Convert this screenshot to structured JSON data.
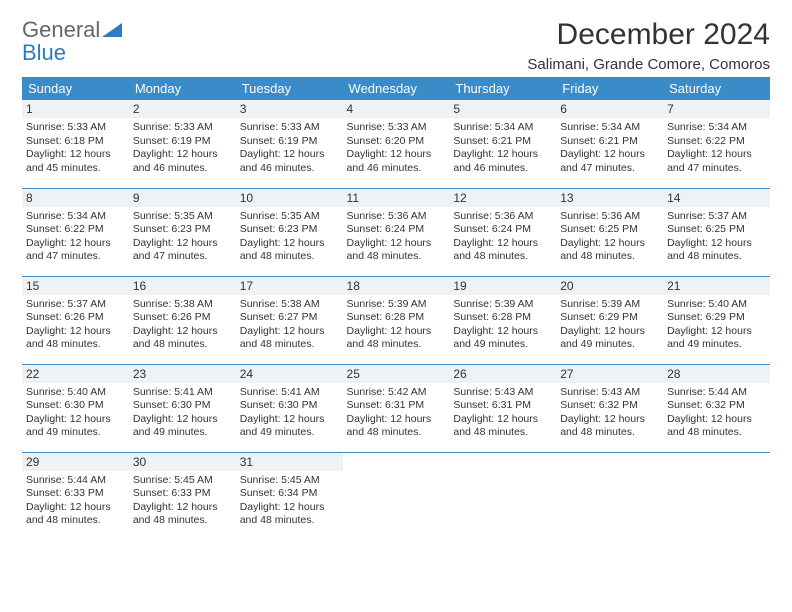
{
  "logo": {
    "line1": "General",
    "line2": "Blue"
  },
  "title": "December 2024",
  "location": "Salimani, Grande Comore, Comoros",
  "colors": {
    "header_bg": "#3b8bc9",
    "header_text": "#ffffff",
    "daynum_bg": "#eef2f5",
    "border": "#3b8bc9",
    "logo_gray": "#666666",
    "logo_blue": "#2f7bbf"
  },
  "weekdays": [
    "Sunday",
    "Monday",
    "Tuesday",
    "Wednesday",
    "Thursday",
    "Friday",
    "Saturday"
  ],
  "days": [
    {
      "n": "1",
      "sr": "5:33 AM",
      "ss": "6:18 PM",
      "dl": "12 hours and 45 minutes."
    },
    {
      "n": "2",
      "sr": "5:33 AM",
      "ss": "6:19 PM",
      "dl": "12 hours and 46 minutes."
    },
    {
      "n": "3",
      "sr": "5:33 AM",
      "ss": "6:19 PM",
      "dl": "12 hours and 46 minutes."
    },
    {
      "n": "4",
      "sr": "5:33 AM",
      "ss": "6:20 PM",
      "dl": "12 hours and 46 minutes."
    },
    {
      "n": "5",
      "sr": "5:34 AM",
      "ss": "6:21 PM",
      "dl": "12 hours and 46 minutes."
    },
    {
      "n": "6",
      "sr": "5:34 AM",
      "ss": "6:21 PM",
      "dl": "12 hours and 47 minutes."
    },
    {
      "n": "7",
      "sr": "5:34 AM",
      "ss": "6:22 PM",
      "dl": "12 hours and 47 minutes."
    },
    {
      "n": "8",
      "sr": "5:34 AM",
      "ss": "6:22 PM",
      "dl": "12 hours and 47 minutes."
    },
    {
      "n": "9",
      "sr": "5:35 AM",
      "ss": "6:23 PM",
      "dl": "12 hours and 47 minutes."
    },
    {
      "n": "10",
      "sr": "5:35 AM",
      "ss": "6:23 PM",
      "dl": "12 hours and 48 minutes."
    },
    {
      "n": "11",
      "sr": "5:36 AM",
      "ss": "6:24 PM",
      "dl": "12 hours and 48 minutes."
    },
    {
      "n": "12",
      "sr": "5:36 AM",
      "ss": "6:24 PM",
      "dl": "12 hours and 48 minutes."
    },
    {
      "n": "13",
      "sr": "5:36 AM",
      "ss": "6:25 PM",
      "dl": "12 hours and 48 minutes."
    },
    {
      "n": "14",
      "sr": "5:37 AM",
      "ss": "6:25 PM",
      "dl": "12 hours and 48 minutes."
    },
    {
      "n": "15",
      "sr": "5:37 AM",
      "ss": "6:26 PM",
      "dl": "12 hours and 48 minutes."
    },
    {
      "n": "16",
      "sr": "5:38 AM",
      "ss": "6:26 PM",
      "dl": "12 hours and 48 minutes."
    },
    {
      "n": "17",
      "sr": "5:38 AM",
      "ss": "6:27 PM",
      "dl": "12 hours and 48 minutes."
    },
    {
      "n": "18",
      "sr": "5:39 AM",
      "ss": "6:28 PM",
      "dl": "12 hours and 48 minutes."
    },
    {
      "n": "19",
      "sr": "5:39 AM",
      "ss": "6:28 PM",
      "dl": "12 hours and 49 minutes."
    },
    {
      "n": "20",
      "sr": "5:39 AM",
      "ss": "6:29 PM",
      "dl": "12 hours and 49 minutes."
    },
    {
      "n": "21",
      "sr": "5:40 AM",
      "ss": "6:29 PM",
      "dl": "12 hours and 49 minutes."
    },
    {
      "n": "22",
      "sr": "5:40 AM",
      "ss": "6:30 PM",
      "dl": "12 hours and 49 minutes."
    },
    {
      "n": "23",
      "sr": "5:41 AM",
      "ss": "6:30 PM",
      "dl": "12 hours and 49 minutes."
    },
    {
      "n": "24",
      "sr": "5:41 AM",
      "ss": "6:30 PM",
      "dl": "12 hours and 49 minutes."
    },
    {
      "n": "25",
      "sr": "5:42 AM",
      "ss": "6:31 PM",
      "dl": "12 hours and 48 minutes."
    },
    {
      "n": "26",
      "sr": "5:43 AM",
      "ss": "6:31 PM",
      "dl": "12 hours and 48 minutes."
    },
    {
      "n": "27",
      "sr": "5:43 AM",
      "ss": "6:32 PM",
      "dl": "12 hours and 48 minutes."
    },
    {
      "n": "28",
      "sr": "5:44 AM",
      "ss": "6:32 PM",
      "dl": "12 hours and 48 minutes."
    },
    {
      "n": "29",
      "sr": "5:44 AM",
      "ss": "6:33 PM",
      "dl": "12 hours and 48 minutes."
    },
    {
      "n": "30",
      "sr": "5:45 AM",
      "ss": "6:33 PM",
      "dl": "12 hours and 48 minutes."
    },
    {
      "n": "31",
      "sr": "5:45 AM",
      "ss": "6:34 PM",
      "dl": "12 hours and 48 minutes."
    }
  ],
  "labels": {
    "sunrise": "Sunrise: ",
    "sunset": "Sunset: ",
    "daylight": "Daylight: "
  }
}
